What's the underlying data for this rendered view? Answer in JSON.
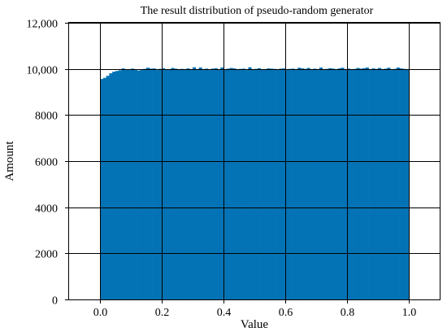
{
  "chart_data": {
    "type": "bar",
    "title": "The  result distribution of pseudo-random generator",
    "xlabel": "Value",
    "ylabel": "Amount",
    "xlim": [
      -0.1,
      1.1
    ],
    "ylim": [
      0,
      12000
    ],
    "grid": true,
    "x_ticks": [
      {
        "value": 0.0,
        "label": "0.0"
      },
      {
        "value": 0.2,
        "label": "0.2"
      },
      {
        "value": 0.4,
        "label": "0.4"
      },
      {
        "value": 0.6,
        "label": "0.6"
      },
      {
        "value": 0.8,
        "label": "0.8"
      },
      {
        "value": 1.0,
        "label": "1.0"
      }
    ],
    "y_ticks": [
      {
        "value": 0,
        "label": "0"
      },
      {
        "value": 2000,
        "label": "2000"
      },
      {
        "value": 4000,
        "label": "4000"
      },
      {
        "value": 6000,
        "label": "6000"
      },
      {
        "value": 8000,
        "label": "8000"
      },
      {
        "value": 10000,
        "label": "10,000"
      },
      {
        "value": 12000,
        "label": "12,000"
      }
    ],
    "bin_start": 0.0,
    "bin_width": 0.01,
    "color": "#0473b5",
    "values": [
      9560,
      9610,
      9700,
      9810,
      9880,
      9910,
      9940,
      10020,
      9980,
      9960,
      10010,
      9980,
      9930,
      9990,
      10000,
      10050,
      10010,
      10020,
      9950,
      10000,
      10030,
      9990,
      9960,
      10040,
      10010,
      9970,
      10000,
      9980,
      10020,
      9960,
      10070,
      9990,
      10060,
      9970,
      10010,
      9950,
      10010,
      10030,
      9980,
      10060,
      9960,
      10010,
      10040,
      10020,
      9970,
      10000,
      10010,
      9950,
      10070,
      9990,
      10000,
      10030,
      9960,
      9990,
      10020,
      10010,
      10000,
      9980,
      10010,
      10020,
      9990,
      10000,
      10010,
      9980,
      10050,
      10020,
      10000,
      10040,
      9970,
      10010,
      9980,
      10060,
      9980,
      10000,
      10030,
      10010,
      9960,
      10020,
      10050,
      9970,
      10010,
      9980,
      10000,
      10040,
      10010,
      10030,
      10060,
      9980,
      10020,
      10000,
      10040,
      9990,
      10010,
      10050,
      9980,
      10000,
      10060,
      10020,
      10000,
      9960
    ]
  }
}
